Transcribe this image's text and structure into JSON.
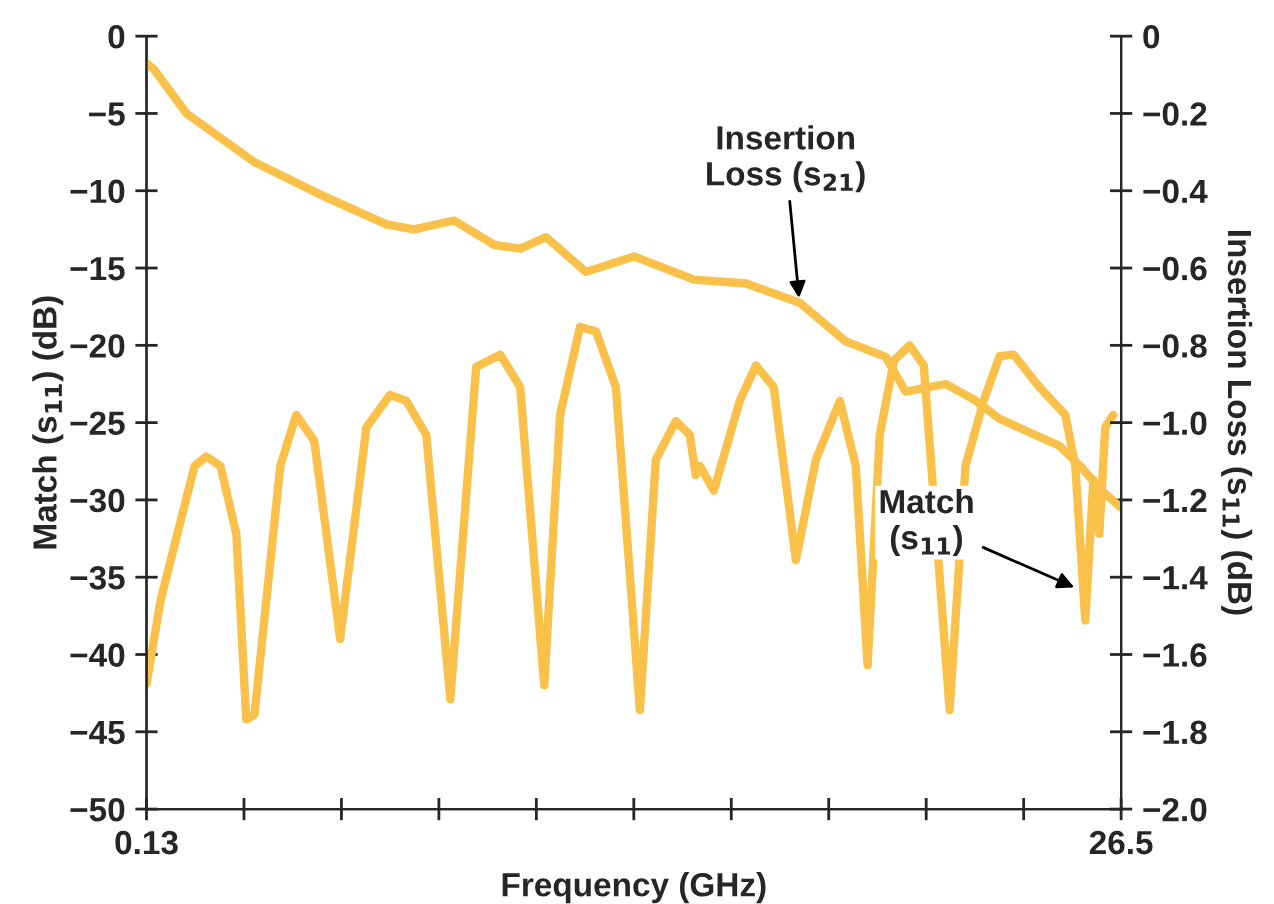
{
  "chart_data": {
    "type": "line",
    "xlabel": "Frequency (GHz)",
    "ylabel": "Match (s$_{11}$) (dB)",
    "y2label": "Insertion Loss (s$_{11}$) (dB)",
    "xlim": [
      0.13,
      26.5
    ],
    "xticks": [
      {
        "value": 0.13,
        "label": "0.13"
      },
      {
        "value": 2.767,
        "label": null
      },
      {
        "value": 5.404,
        "label": null
      },
      {
        "value": 8.041,
        "label": null
      },
      {
        "value": 10.678,
        "label": null
      },
      {
        "value": 13.315,
        "label": null
      },
      {
        "value": 15.952,
        "label": null
      },
      {
        "value": 18.589,
        "label": null
      },
      {
        "value": 21.226,
        "label": null
      },
      {
        "value": 23.863,
        "label": null
      },
      {
        "value": 26.5,
        "label": "26.5"
      }
    ],
    "ylim": [
      -50,
      0
    ],
    "yticks": [
      {
        "value": 0,
        "label": "0"
      },
      {
        "value": -5,
        "label": "−5"
      },
      {
        "value": -10,
        "label": "−10"
      },
      {
        "value": -15,
        "label": "−15"
      },
      {
        "value": -20,
        "label": "−20"
      },
      {
        "value": -25,
        "label": "−25"
      },
      {
        "value": -30,
        "label": "−30"
      },
      {
        "value": -35,
        "label": "−35"
      },
      {
        "value": -40,
        "label": "−40"
      },
      {
        "value": -45,
        "label": "−45"
      },
      {
        "value": -50,
        "label": "−50"
      }
    ],
    "y2lim": [
      -2.0,
      0
    ],
    "y2ticks": [
      {
        "value": 0,
        "label": "0"
      },
      {
        "value": -0.2,
        "label": "−0.2"
      },
      {
        "value": -0.4,
        "label": "−0.4"
      },
      {
        "value": -0.6,
        "label": "−0.6"
      },
      {
        "value": -0.8,
        "label": "−0.8"
      },
      {
        "value": -1.0,
        "label": "−1.0"
      },
      {
        "value": -1.2,
        "label": "−1.2"
      },
      {
        "value": -1.4,
        "label": "−1.4"
      },
      {
        "value": -1.6,
        "label": "−1.6"
      },
      {
        "value": -1.8,
        "label": "−1.8"
      },
      {
        "value": -2.0,
        "label": "−2.0"
      }
    ],
    "grid": false,
    "legend": false,
    "marker": "none",
    "line_style": "solid",
    "series": [
      {
        "color": "#f9c04a",
        "axis": "y",
        "x": [
          0.13,
          0.51,
          1.43,
          1.75,
          2.13,
          2.56,
          2.83,
          3.05,
          3.75,
          4.18,
          4.67,
          5.37,
          6.08,
          6.72,
          7.16,
          7.7,
          8.35,
          9.05,
          9.7,
          10.24,
          10.89,
          11.32,
          11.86,
          12.29,
          12.83,
          13.48,
          13.91,
          14.45,
          14.83,
          14.99,
          15.1,
          15.48,
          16.18,
          16.62,
          17.1,
          17.7,
          18.24,
          18.89,
          19.32,
          19.64,
          19.97,
          20.35,
          20.78,
          21.16,
          21.86,
          22.29,
          22.78,
          23.21,
          23.59,
          24.29,
          24.99,
          25.26,
          25.53,
          25.75,
          25.91,
          26.07,
          26.29
        ],
        "values": [
          -41.9,
          -36.5,
          -27.8,
          -27.2,
          -27.8,
          -32.2,
          -44.2,
          -43.9,
          -27.8,
          -24.5,
          -26.2,
          -39.0,
          -25.3,
          -23.2,
          -23.6,
          -25.8,
          -42.9,
          -21.4,
          -20.6,
          -22.7,
          -42.0,
          -24.5,
          -18.8,
          -19.1,
          -22.7,
          -43.6,
          -27.4,
          -24.9,
          -25.8,
          -28.4,
          -27.8,
          -29.4,
          -23.6,
          -21.3,
          -22.7,
          -33.9,
          -27.4,
          -23.6,
          -27.8,
          -40.7,
          -25.8,
          -21.0,
          -20.0,
          -21.3,
          -43.6,
          -27.8,
          -23.6,
          -20.7,
          -20.6,
          -22.7,
          -24.5,
          -27.8,
          -37.8,
          -28.7,
          -32.2,
          -25.3,
          -24.5
        ]
      },
      {
        "color": "#f9c04a",
        "axis": "y2",
        "x": [
          0.13,
          0.35,
          1.21,
          3.05,
          4.83,
          6.62,
          7.37,
          8.45,
          9.54,
          10.24,
          10.94,
          12.02,
          13.32,
          14.94,
          16.35,
          17.81,
          19.05,
          20.13,
          20.67,
          21.75,
          22.51,
          23.21,
          24.13,
          24.83,
          25.37,
          26.02,
          26.5
        ],
        "values": [
          -0.07,
          -0.088,
          -0.2,
          -0.326,
          -0.41,
          -0.487,
          -0.5,
          -0.477,
          -0.54,
          -0.55,
          -0.52,
          -0.61,
          -0.57,
          -0.63,
          -0.64,
          -0.69,
          -0.79,
          -0.83,
          -0.92,
          -0.9,
          -0.94,
          -0.99,
          -1.03,
          -1.06,
          -1.11,
          -1.18,
          -1.22
        ]
      }
    ],
    "annotations": [
      {
        "text": "Insertion\nLoss (s$_{21}$)",
        "x": 17.8,
        "y": -17.3
      },
      {
        "text": "Match\n(s$_{11}$)",
        "x": 25.37,
        "y": -35.8
      }
    ]
  }
}
